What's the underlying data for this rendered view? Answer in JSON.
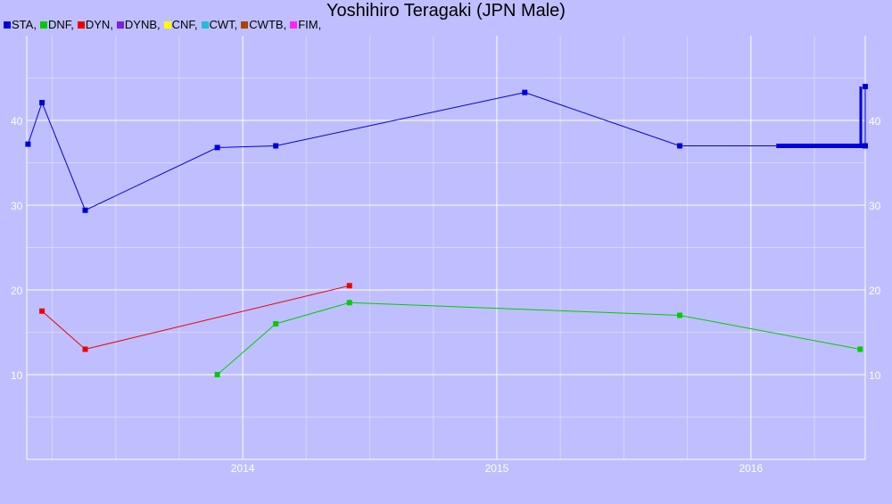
{
  "chart_data": {
    "type": "line",
    "title": "Yoshihiro Teragaki (JPN Male)",
    "legend": [
      {
        "name": "STA,",
        "color": "#0000dd"
      },
      {
        "name": "DNF,",
        "color": "#00cc00"
      },
      {
        "name": "DYN,",
        "color": "#ee0000"
      },
      {
        "name": "DYNB,",
        "color": "#7a22dd"
      },
      {
        "name": "CNF,",
        "color": "#ffff00"
      },
      {
        "name": "CWT,",
        "color": "#22bbdd"
      },
      {
        "name": "CWTB,",
        "color": "#aa4400"
      },
      {
        "name": "FIM,",
        "color": "#ff22ff"
      }
    ],
    "legend_position": "top-left",
    "xlim": [
      2013.15,
      2016.45
    ],
    "ylim": [
      0,
      50
    ],
    "x_ticks": [
      2014,
      2015,
      2016
    ],
    "x_tick_labels": [
      "2014",
      "2015",
      "2016"
    ],
    "y_ticks": [
      10,
      20,
      30,
      40
    ],
    "y_tick_labels": [
      "10",
      "20",
      "30",
      "40"
    ],
    "grid": true,
    "series": [
      {
        "name": "STA",
        "color": "#0000dd",
        "points": [
          [
            2013.155,
            37.2
          ],
          [
            2013.21,
            42.1
          ],
          [
            2013.38,
            29.4
          ],
          [
            2013.9,
            36.8
          ],
          [
            2014.13,
            37.0
          ],
          [
            2015.11,
            43.3
          ],
          [
            2015.72,
            37.0
          ],
          [
            2016.45,
            37.0
          ],
          [
            2016.45,
            44.0
          ],
          [
            2016.45,
            37.0
          ]
        ]
      },
      {
        "name": "DNF",
        "color": "#00cc00",
        "points": [
          [
            2013.9,
            10.0
          ],
          [
            2014.13,
            16.0
          ],
          [
            2014.42,
            18.5
          ],
          [
            2015.72,
            17.0
          ],
          [
            2016.43,
            13.0
          ]
        ]
      },
      {
        "name": "DYN",
        "color": "#ee0000",
        "points": [
          [
            2013.21,
            17.5
          ],
          [
            2013.38,
            13.0
          ],
          [
            2014.42,
            20.5
          ]
        ]
      }
    ]
  }
}
